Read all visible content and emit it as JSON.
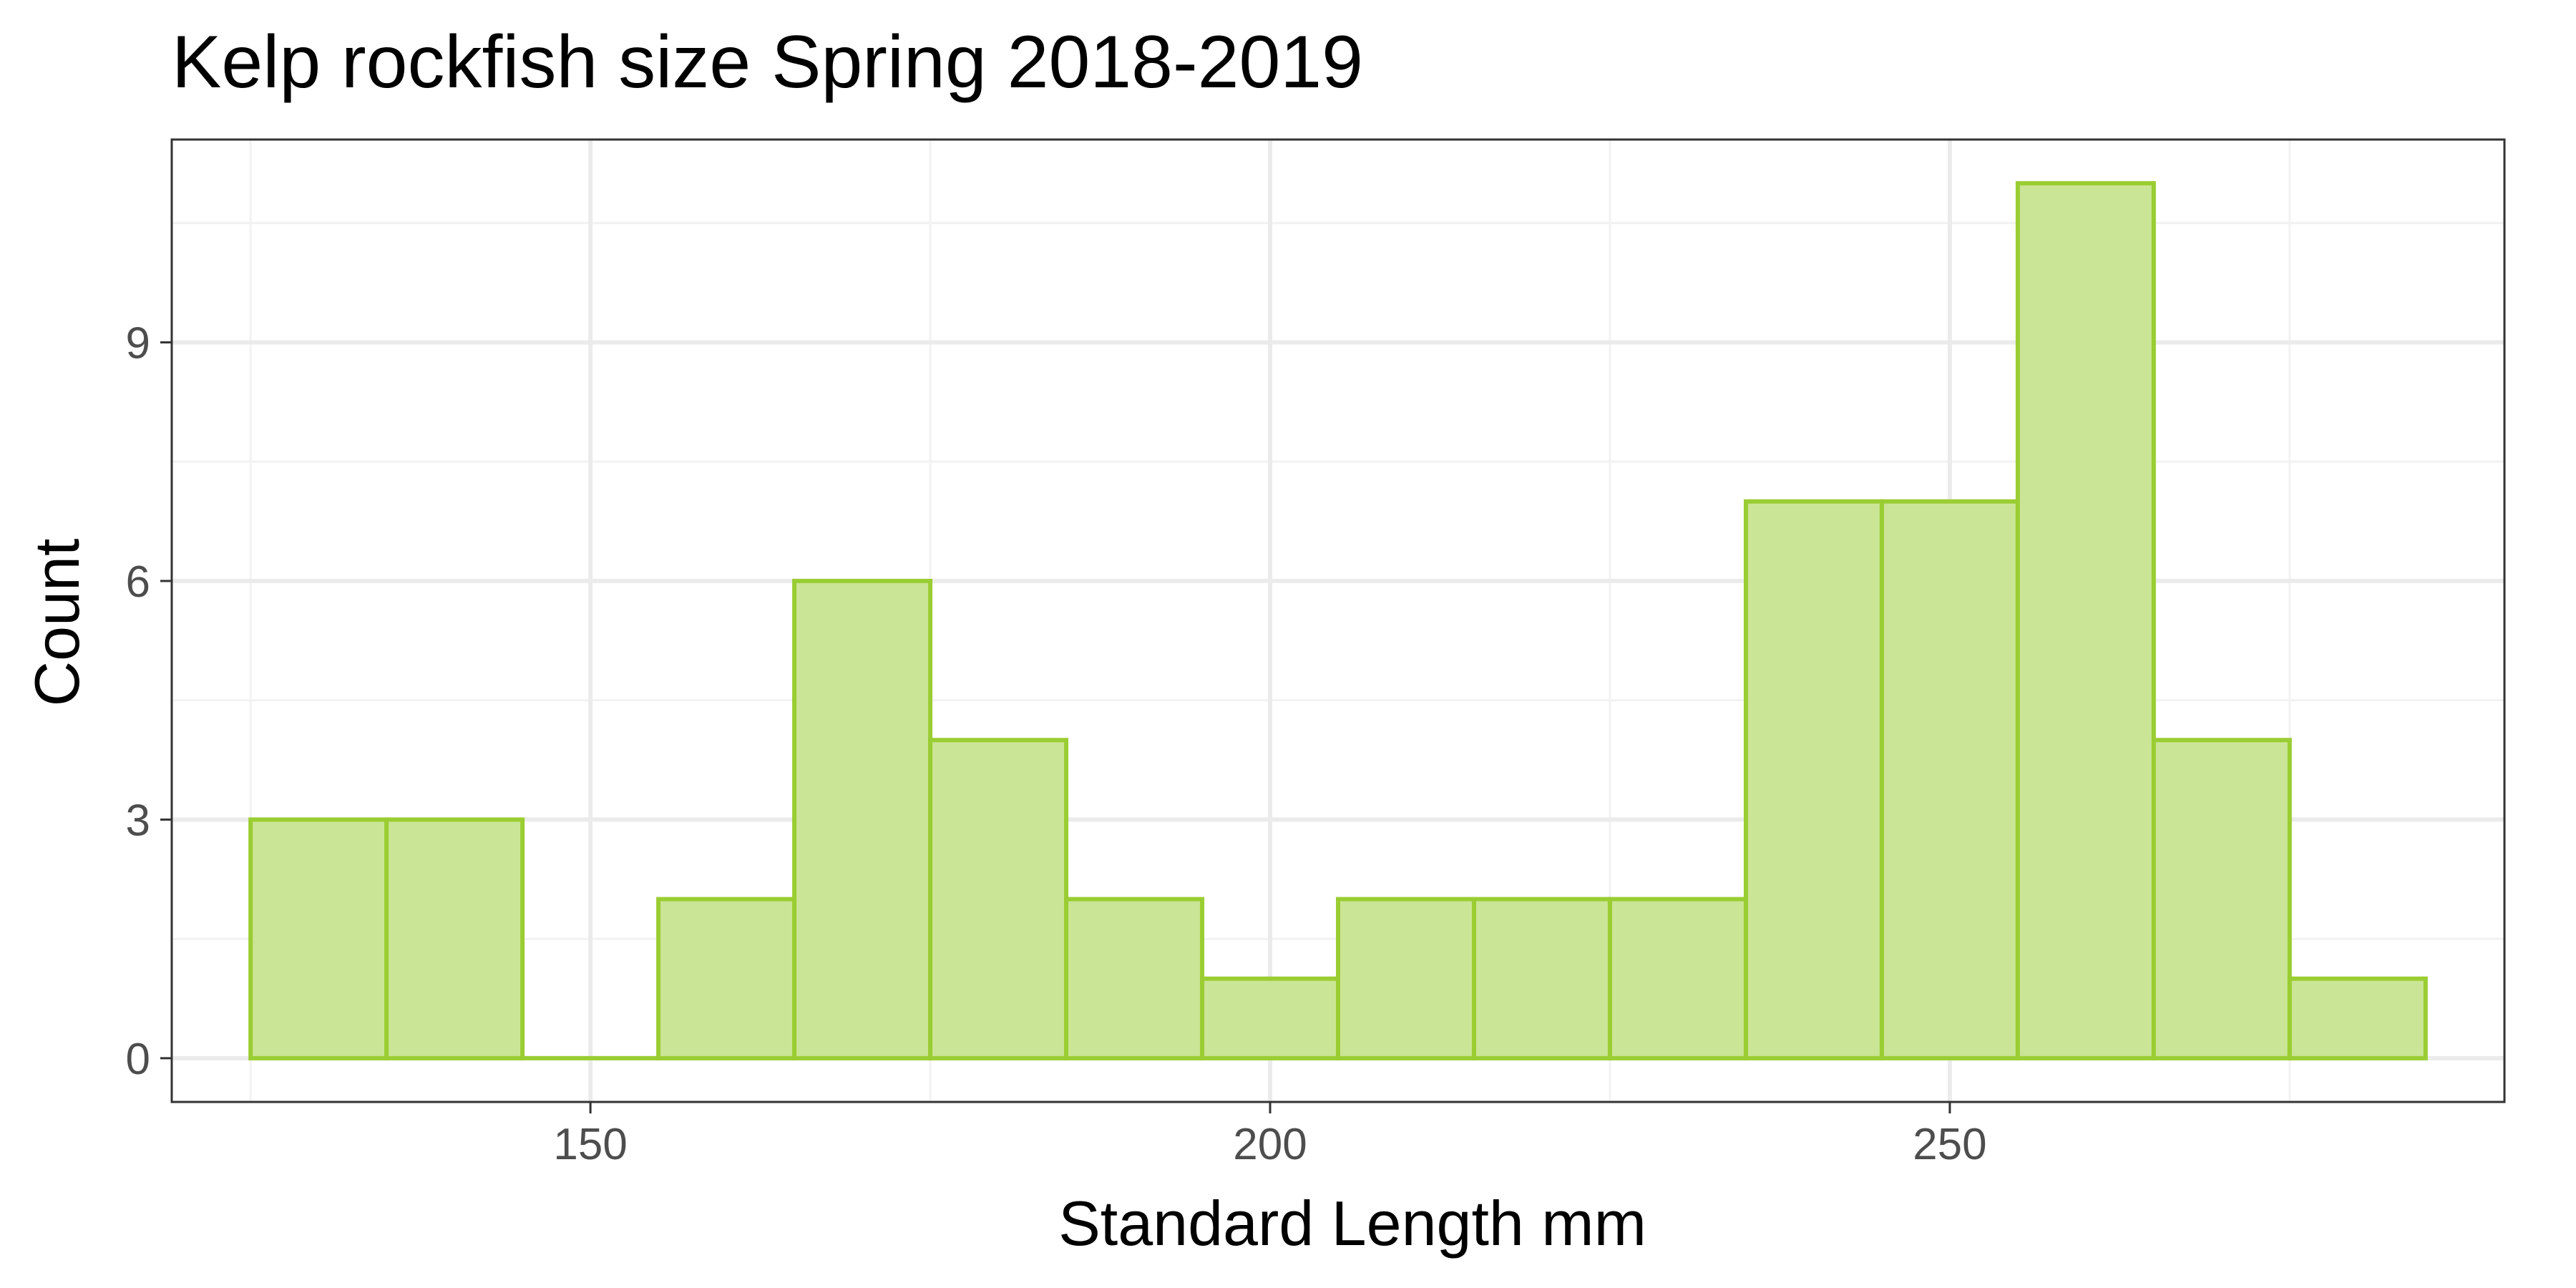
{
  "chart_data": {
    "type": "bar",
    "title": "Kelp rockfish size Spring 2018-2019",
    "xlabel": "Standard Length mm",
    "ylabel": "Count",
    "bin_width": 10,
    "x": [
      130,
      140,
      150,
      160,
      170,
      180,
      190,
      200,
      210,
      220,
      230,
      240,
      250,
      260,
      270,
      280
    ],
    "values": [
      3,
      3,
      0,
      2,
      6,
      4,
      2,
      1,
      2,
      2,
      2,
      7,
      7,
      11,
      4,
      1
    ],
    "xlim": [
      119.2,
      290.8
    ],
    "ylim": [
      -0.55,
      11.55
    ],
    "x_ticks": [
      150,
      200,
      250
    ],
    "y_ticks": [
      0,
      3,
      6,
      9
    ],
    "grid": true,
    "colors": {
      "bar_fill": "#cbe596",
      "bar_stroke": "#9acd32",
      "grid_major": "#ebebeb",
      "grid_minor": "#f2f2f2",
      "panel_border": "#333333"
    }
  }
}
